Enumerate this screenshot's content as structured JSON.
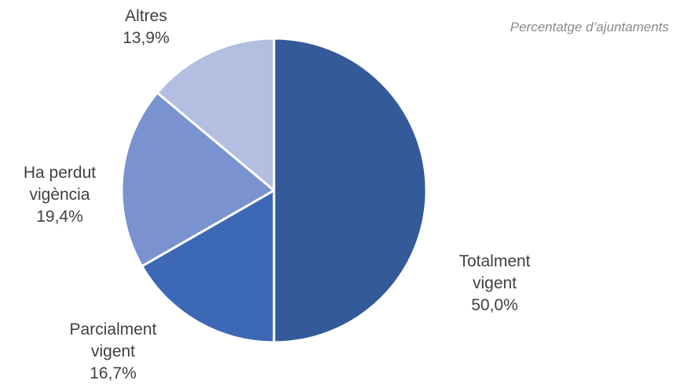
{
  "chart_data": {
    "type": "pie",
    "subtitle": "Percentatge d’ajuntaments",
    "categories": [
      "Totalment vigent",
      "Parcialment vigent",
      "Ha perdut vigència",
      "Altres"
    ],
    "values": [
      50.0,
      16.7,
      19.4,
      13.9
    ],
    "value_labels": [
      "50,0%",
      "16,7%",
      "19,4%",
      "13,9%"
    ],
    "label_lines": [
      [
        "Totalment",
        "vigent"
      ],
      [
        "Parcialment",
        "vigent"
      ],
      [
        "Ha perdut",
        "vigència"
      ],
      [
        "Altres"
      ]
    ],
    "colors": [
      "#345a9a",
      "#3d68b6",
      "#7a92d0",
      "#b3bfe0"
    ],
    "start": "12 o'clock",
    "direction": "clockwise",
    "slice_border_color": "#ffffff",
    "legend": "none"
  }
}
